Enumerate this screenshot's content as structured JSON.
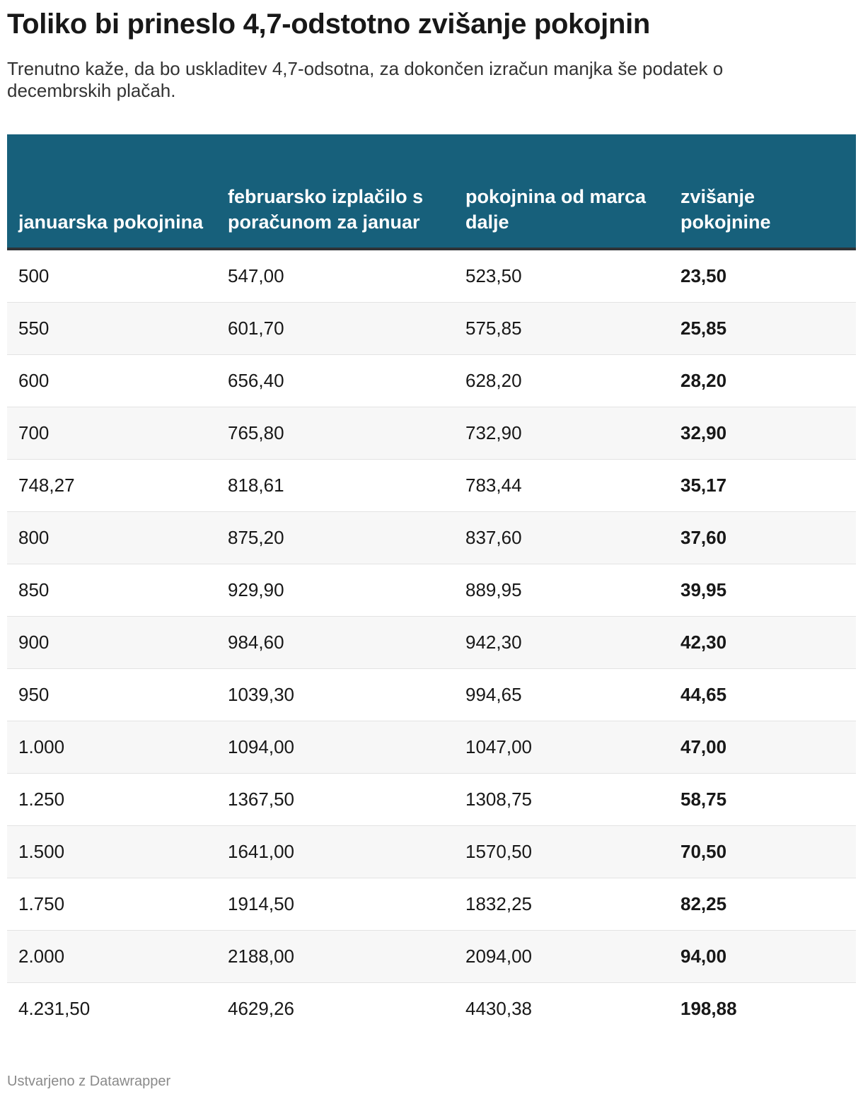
{
  "header": {
    "title": "Toliko bi prineslo 4,7-odstotno zvišanje pokojnin",
    "subtitle": "Trenutno kaže, da bo uskladitev 4,7-odsotna, za dokončen izračun manjka še podatek o decembrskih plačah."
  },
  "table": {
    "columns": [
      "januarska pokojnina",
      "februarsko izplačilo s poračunom za januar",
      "pokojnina od marca dalje",
      "zvišanje pokojnine"
    ],
    "rows": [
      [
        "500",
        "547,00",
        "523,50",
        "23,50"
      ],
      [
        "550",
        "601,70",
        "575,85",
        "25,85"
      ],
      [
        "600",
        "656,40",
        "628,20",
        "28,20"
      ],
      [
        "700",
        "765,80",
        "732,90",
        "32,90"
      ],
      [
        "748,27",
        "818,61",
        "783,44",
        "35,17"
      ],
      [
        "800",
        "875,20",
        "837,60",
        "37,60"
      ],
      [
        "850",
        "929,90",
        "889,95",
        "39,95"
      ],
      [
        "900",
        "984,60",
        "942,30",
        "42,30"
      ],
      [
        "950",
        "1039,30",
        "994,65",
        "44,65"
      ],
      [
        "1.000",
        "1094,00",
        "1047,00",
        "47,00"
      ],
      [
        "1.250",
        "1367,50",
        "1308,75",
        "58,75"
      ],
      [
        "1.500",
        "1641,00",
        "1570,50",
        "70,50"
      ],
      [
        "1.750",
        "1914,50",
        "1832,25",
        "82,25"
      ],
      [
        "2.000",
        "2188,00",
        "2094,00",
        "94,00"
      ],
      [
        "4.231,50",
        "4629,26",
        "4430,38",
        "198,88"
      ]
    ]
  },
  "footer": {
    "credit": "Ustvarjeno z Datawrapper"
  }
}
